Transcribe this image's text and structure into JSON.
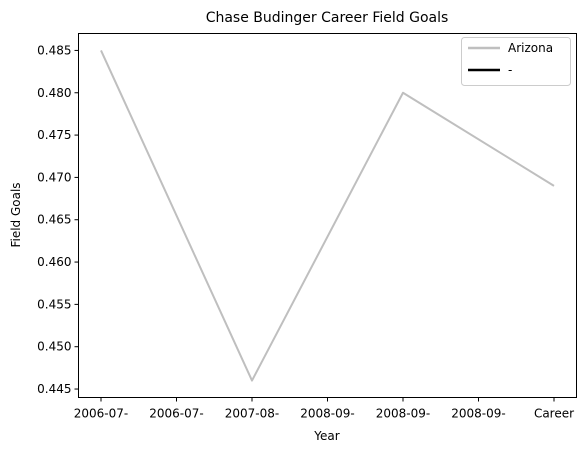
{
  "chart_data": {
    "type": "line",
    "title": "Chase Budinger Career Field Goals",
    "xlabel": "Year",
    "ylabel": "Field Goals",
    "x_tick_labels": [
      "2006-07-",
      "2006-07-",
      "2007-08-",
      "2008-09-",
      "2008-09-",
      "2008-09-",
      "Career"
    ],
    "ylim": [
      0.444,
      0.487
    ],
    "y_ticks": [
      "0.445",
      "0.450",
      "0.455",
      "0.460",
      "0.465",
      "0.470",
      "0.475",
      "0.480",
      "0.485"
    ],
    "grid": false,
    "legend_position": "top-right",
    "series": [
      {
        "name": "Arizona",
        "color": "#bfbfbf",
        "points": [
          [
            0,
            0.485
          ],
          [
            2,
            0.446
          ],
          [
            4,
            0.48
          ],
          [
            6,
            0.469
          ]
        ]
      },
      {
        "name": "-",
        "color": "#000000",
        "points": []
      }
    ]
  }
}
